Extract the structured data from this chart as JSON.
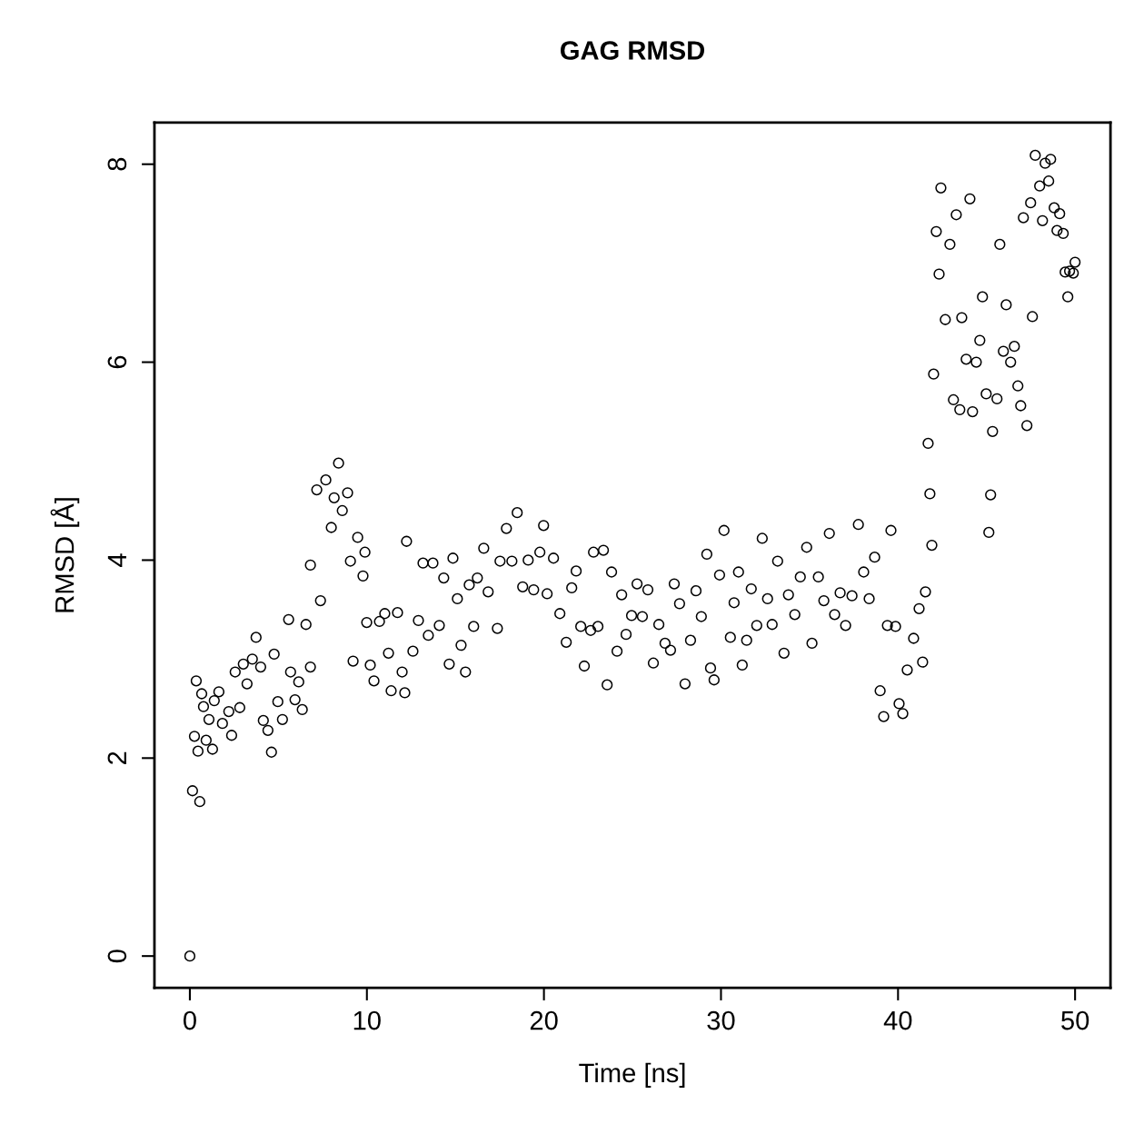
{
  "chart_data": {
    "type": "scatter",
    "title": "GAG RMSD",
    "xlabel": "Time [ns]",
    "ylabel": "RMSD [Å]",
    "xlim": [
      -2,
      52
    ],
    "ylim": [
      -0.32,
      8.42
    ],
    "xticks": [
      0,
      10,
      20,
      30,
      40,
      50
    ],
    "yticks": [
      0,
      2,
      4,
      6,
      8
    ],
    "grid": false,
    "legend": false,
    "marker": "circle",
    "series": [
      {
        "color": "#000000",
        "x": [
          0,
          0.15,
          0.56,
          0.26,
          0.36,
          0.46,
          0.67,
          0.77,
          0.92,
          1.08,
          1.28,
          1.38,
          1.64,
          1.84,
          2.2,
          2.36,
          2.56,
          2.82,
          3.02,
          3.23,
          3.53,
          3.74,
          4.0,
          4.15,
          4.41,
          4.61,
          4.76,
          4.97,
          5.23,
          5.58,
          5.69,
          5.94,
          6.15,
          6.35,
          6.56,
          6.81,
          6.81,
          7.17,
          7.38,
          7.68,
          7.99,
          8.15,
          8.4,
          8.61,
          8.91,
          9.07,
          9.22,
          9.48,
          9.78,
          9.89,
          9.99,
          10.19,
          10.4,
          10.71,
          11.01,
          11.22,
          11.37,
          11.73,
          11.99,
          12.24,
          12.14,
          12.6,
          12.91,
          13.17,
          13.47,
          13.73,
          14.09,
          14.34,
          14.65,
          14.86,
          15.11,
          15.32,
          15.57,
          15.78,
          16.03,
          16.24,
          16.6,
          16.85,
          17.37,
          17.52,
          17.88,
          18.19,
          18.49,
          18.8,
          19.11,
          19.42,
          19.77,
          19.98,
          20.18,
          20.54,
          20.9,
          21.26,
          21.57,
          21.82,
          22.08,
          22.28,
          22.64,
          22.8,
          23.05,
          23.36,
          23.57,
          23.82,
          24.13,
          24.39,
          24.64,
          24.95,
          25.26,
          25.56,
          25.87,
          26.18,
          26.49,
          26.84,
          27.15,
          27.36,
          27.66,
          27.97,
          28.28,
          28.59,
          28.89,
          29.2,
          29.41,
          29.61,
          29.92,
          30.17,
          30.53,
          30.74,
          30.99,
          31.2,
          31.45,
          31.71,
          32.02,
          32.33,
          32.63,
          32.89,
          33.2,
          33.56,
          33.81,
          34.17,
          34.48,
          34.84,
          35.14,
          35.5,
          35.81,
          36.12,
          36.42,
          36.73,
          37.04,
          37.4,
          37.76,
          38.06,
          38.37,
          38.68,
          38.99,
          39.19,
          39.4,
          39.6,
          39.86,
          40.06,
          40.27,
          40.52,
          40.88,
          41.19,
          41.39,
          41.55,
          41.7,
          41.8,
          41.91,
          42.01,
          42.16,
          42.32,
          42.42,
          42.67,
          42.93,
          43.13,
          43.29,
          43.49,
          43.6,
          43.85,
          44.06,
          44.21,
          44.42,
          44.62,
          44.77,
          44.98,
          45.13,
          45.23,
          45.34,
          45.59,
          45.75,
          45.95,
          46.11,
          46.36,
          46.57,
          46.77,
          46.93,
          47.08,
          47.28,
          47.49,
          47.59,
          47.75,
          48.0,
          48.16,
          48.31,
          48.51,
          48.62,
          48.82,
          48.98,
          49.13,
          49.33,
          49.44,
          49.59,
          49.69,
          49.9,
          50.0
        ],
        "values": [
          0,
          1.67,
          1.56,
          2.22,
          2.78,
          2.07,
          2.65,
          2.52,
          2.18,
          2.39,
          2.09,
          2.58,
          2.67,
          2.35,
          2.47,
          2.23,
          2.87,
          2.51,
          2.95,
          2.75,
          3.0,
          3.22,
          2.92,
          2.38,
          2.28,
          2.06,
          3.05,
          2.57,
          2.39,
          3.4,
          2.87,
          2.59,
          2.77,
          2.49,
          3.35,
          2.92,
          3.95,
          4.71,
          3.59,
          4.81,
          4.33,
          4.63,
          4.98,
          4.5,
          4.68,
          3.99,
          2.98,
          4.23,
          3.84,
          4.08,
          3.37,
          2.94,
          2.78,
          3.38,
          3.46,
          3.06,
          2.68,
          3.47,
          2.87,
          4.19,
          2.66,
          3.08,
          3.39,
          3.97,
          3.24,
          3.97,
          3.34,
          3.82,
          2.95,
          4.02,
          3.61,
          3.14,
          2.87,
          3.75,
          3.33,
          3.82,
          4.12,
          3.68,
          3.31,
          3.99,
          4.32,
          3.99,
          4.48,
          3.73,
          4.0,
          3.7,
          4.08,
          4.35,
          3.66,
          4.02,
          3.46,
          3.17,
          3.72,
          3.89,
          3.33,
          2.93,
          3.29,
          4.08,
          3.33,
          4.1,
          2.74,
          3.88,
          3.08,
          3.65,
          3.25,
          3.44,
          3.76,
          3.43,
          3.7,
          2.96,
          3.35,
          3.16,
          3.09,
          3.76,
          3.56,
          2.75,
          3.19,
          3.69,
          3.43,
          4.06,
          2.91,
          2.79,
          3.85,
          4.3,
          3.22,
          3.57,
          3.88,
          2.94,
          3.19,
          3.71,
          3.34,
          4.22,
          3.61,
          3.35,
          3.99,
          3.06,
          3.65,
          3.45,
          3.83,
          4.13,
          3.16,
          3.83,
          3.59,
          4.27,
          3.45,
          3.67,
          3.34,
          3.64,
          4.36,
          3.88,
          3.61,
          4.03,
          2.68,
          2.42,
          3.34,
          4.3,
          3.33,
          2.55,
          2.45,
          2.89,
          3.21,
          3.51,
          2.97,
          3.68,
          5.18,
          4.67,
          4.15,
          5.88,
          7.32,
          6.89,
          7.76,
          6.43,
          7.19,
          5.62,
          7.49,
          5.52,
          6.45,
          6.03,
          7.65,
          5.5,
          6.0,
          6.22,
          6.66,
          5.68,
          4.28,
          4.66,
          5.3,
          5.63,
          7.19,
          6.11,
          6.58,
          6.0,
          6.16,
          5.76,
          5.56,
          7.46,
          5.36,
          7.61,
          6.46,
          8.09,
          7.78,
          7.43,
          8.01,
          7.83,
          8.05,
          7.56,
          7.33,
          7.5,
          7.3,
          6.91,
          6.66,
          6.92,
          6.9,
          7.01
        ]
      }
    ]
  }
}
